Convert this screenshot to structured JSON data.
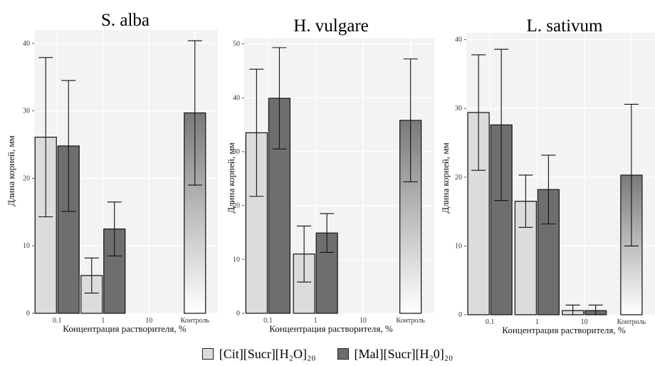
{
  "chart_data": [
    {
      "type": "bar",
      "title": "S. alba",
      "ylabel": "Длина корней, мм",
      "xlabel": "Концентрация растворителя, %",
      "categories": [
        "0.1",
        "1",
        "10",
        "Контроль"
      ],
      "ylim": [
        0,
        42
      ],
      "yticks": [
        0,
        10,
        20,
        30,
        40
      ],
      "series": [
        {
          "name": "[Cit][Sucr][H₂O]₂₀",
          "values": [
            26.1,
            5.6,
            0,
            null
          ],
          "errors": [
            11.8,
            2.6,
            0,
            null
          ]
        },
        {
          "name": "[Mal][Sucr][H₂0]₂₀",
          "values": [
            24.8,
            12.5,
            0,
            null
          ],
          "errors": [
            9.7,
            4.0,
            0,
            null
          ]
        }
      ],
      "control": {
        "value": 29.7,
        "error": 10.7
      }
    },
    {
      "type": "bar",
      "title": "H. vulgare",
      "ylabel": "Длина корней, мм",
      "xlabel": "Концентрация растворителя, %",
      "categories": [
        "0.1",
        "1",
        "10",
        "Контроль"
      ],
      "ylim": [
        0,
        51
      ],
      "yticks": [
        0,
        10,
        20,
        30,
        40,
        50
      ],
      "series": [
        {
          "name": "[Cit][Sucr][H₂O]₂₀",
          "values": [
            33.5,
            11.0,
            0,
            null
          ],
          "errors": [
            11.8,
            5.2,
            0,
            null
          ]
        },
        {
          "name": "[Mal][Sucr][H₂0]₂₀",
          "values": [
            39.9,
            14.9,
            0,
            null
          ],
          "errors": [
            9.4,
            3.6,
            0,
            null
          ]
        }
      ],
      "control": {
        "value": 35.8,
        "error": 11.4
      }
    },
    {
      "type": "bar",
      "title": "L. sativum",
      "ylabel": "Длина корней, мм",
      "xlabel": "Концентрация растворителя, %",
      "categories": [
        "0.1",
        "1",
        "10",
        "Контроль"
      ],
      "ylim": [
        0,
        41
      ],
      "yticks": [
        0,
        10,
        20,
        30,
        40
      ],
      "series": [
        {
          "name": "[Cit][Sucr][H₂O]₂₀",
          "values": [
            29.4,
            16.5,
            0.6,
            null
          ],
          "errors": [
            8.4,
            3.8,
            0.8,
            null
          ]
        },
        {
          "name": "[Mal][Sucr][H₂0]₂₀",
          "values": [
            27.6,
            18.2,
            0.6,
            null
          ],
          "errors": [
            11.0,
            5.0,
            0.8,
            null
          ]
        }
      ],
      "control": {
        "value": 20.3,
        "error": 10.3
      }
    }
  ],
  "colors": {
    "series1_fill": "#dcdcdc",
    "series2_fill": "#6e6e6e",
    "control_top": "#7a7a7a",
    "control_bottom": "#ffffff",
    "bar_edge": "#1e1e1e"
  },
  "legend": {
    "items": [
      {
        "label": "[Cit][Sucr][H₂O]₂₀"
      },
      {
        "label": "[Mal][Sucr][H₂0]₂₀"
      }
    ]
  }
}
